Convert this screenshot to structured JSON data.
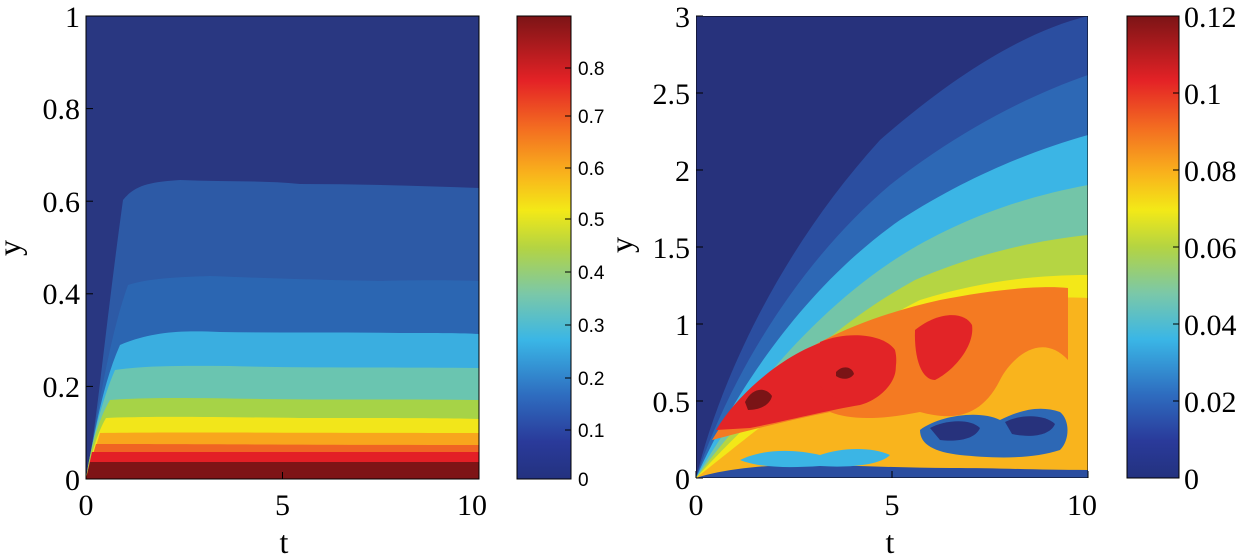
{
  "chart_data": [
    {
      "type": "heatmap",
      "title": "",
      "xlabel": "t",
      "ylabel": "y",
      "xlim": [
        0,
        10
      ],
      "ylim": [
        0,
        1
      ],
      "xticks": [
        "0",
        "5",
        "10"
      ],
      "yticks": [
        "0",
        "0.2",
        "0.4",
        "0.6",
        "0.8",
        "1"
      ],
      "colorbar": {
        "range": [
          0,
          0.9
        ],
        "ticks": [
          "0",
          "0.1",
          "0.2",
          "0.3",
          "0.4",
          "0.5",
          "0.6",
          "0.7",
          "0.8"
        ]
      },
      "contour_boundaries_at_t10": [
        {
          "level": 0.8,
          "y": 0.012
        },
        {
          "level": 0.7,
          "y": 0.035
        },
        {
          "level": 0.6,
          "y": 0.06
        },
        {
          "level": 0.5,
          "y": 0.085
        },
        {
          "level": 0.4,
          "y": 0.115
        },
        {
          "level": 0.35,
          "y": 0.145
        },
        {
          "level": 0.3,
          "y": 0.18
        },
        {
          "level": 0.25,
          "y": 0.23
        },
        {
          "level": 0.2,
          "y": 0.3
        },
        {
          "level": 0.15,
          "y": 0.41
        },
        {
          "level": 0.1,
          "y": 0.62
        }
      ]
    },
    {
      "type": "heatmap",
      "title": "",
      "xlabel": "t",
      "ylabel": "y",
      "xlim": [
        0,
        10
      ],
      "ylim": [
        0,
        3
      ],
      "xticks": [
        "0",
        "5",
        "10"
      ],
      "yticks": [
        "0",
        "0.5",
        "1",
        "1.5",
        "2",
        "2.5",
        "3"
      ],
      "colorbar": {
        "range": [
          0,
          0.12
        ],
        "ticks": [
          "0",
          "0.02",
          "0.04",
          "0.06",
          "0.08",
          "0.1",
          "0.12"
        ]
      },
      "peak": {
        "t": 1.6,
        "y": 0.5,
        "value": 0.115
      },
      "secondary_peaks": [
        {
          "t": 3.8,
          "y": 0.7,
          "value": 0.11
        },
        {
          "t": 6.2,
          "y": 0.9,
          "value": 0.1
        }
      ]
    }
  ]
}
